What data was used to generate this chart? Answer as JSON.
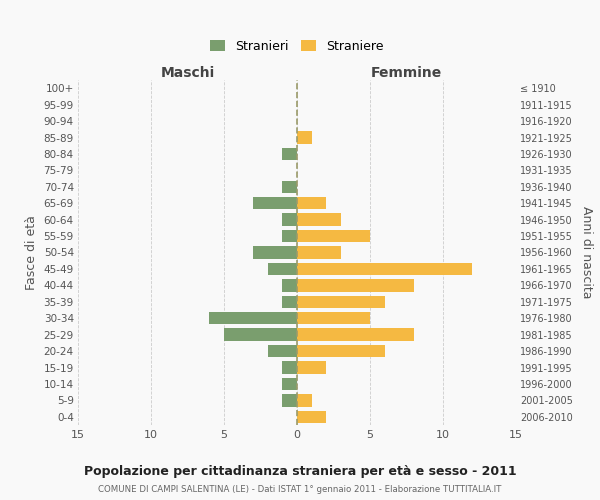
{
  "age_groups": [
    "100+",
    "95-99",
    "90-94",
    "85-89",
    "80-84",
    "75-79",
    "70-74",
    "65-69",
    "60-64",
    "55-59",
    "50-54",
    "45-49",
    "40-44",
    "35-39",
    "30-34",
    "25-29",
    "20-24",
    "15-19",
    "10-14",
    "5-9",
    "0-4"
  ],
  "birth_years": [
    "≤ 1910",
    "1911-1915",
    "1916-1920",
    "1921-1925",
    "1926-1930",
    "1931-1935",
    "1936-1940",
    "1941-1945",
    "1946-1950",
    "1951-1955",
    "1956-1960",
    "1961-1965",
    "1966-1970",
    "1971-1975",
    "1976-1980",
    "1981-1985",
    "1986-1990",
    "1991-1995",
    "1996-2000",
    "2001-2005",
    "2006-2010"
  ],
  "maschi": [
    0,
    0,
    0,
    0,
    1,
    0,
    1,
    3,
    1,
    1,
    3,
    2,
    1,
    1,
    6,
    5,
    2,
    1,
    1,
    1,
    0
  ],
  "femmine": [
    0,
    0,
    0,
    1,
    0,
    0,
    0,
    2,
    3,
    5,
    3,
    12,
    8,
    6,
    5,
    8,
    6,
    2,
    0,
    1,
    2
  ],
  "color_maschi": "#7a9e6e",
  "color_femmine": "#f5b942",
  "color_dashed_line": "#9b9b6a",
  "xlim": 15,
  "title": "Popolazione per cittadinanza straniera per età e sesso - 2011",
  "subtitle": "COMUNE DI CAMPI SALENTINA (LE) - Dati ISTAT 1° gennaio 2011 - Elaborazione TUTTITALIA.IT",
  "ylabel_left": "Fasce di età",
  "ylabel_right": "Anni di nascita",
  "header_left": "Maschi",
  "header_right": "Femmine",
  "legend_maschi": "Stranieri",
  "legend_femmine": "Straniere",
  "bg_color": "#f9f9f9",
  "grid_color": "#cccccc",
  "bar_height": 0.75
}
